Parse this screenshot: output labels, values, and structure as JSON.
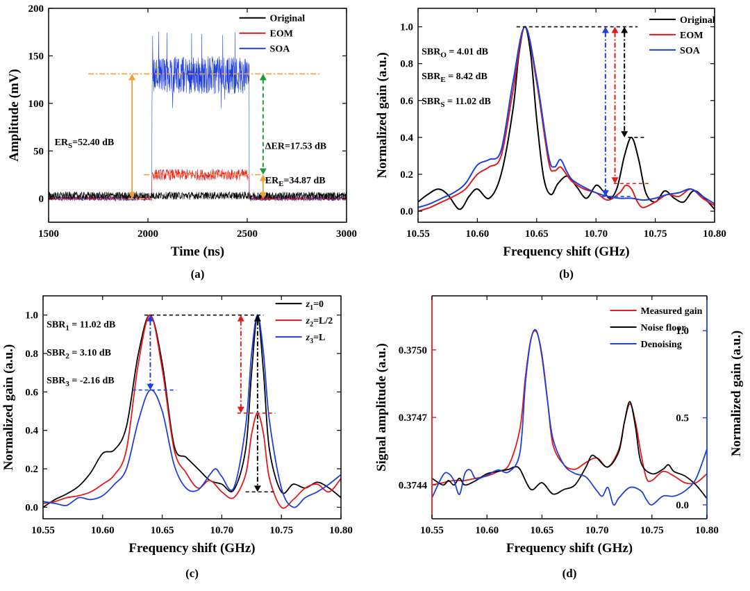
{
  "colors": {
    "original": "#000000",
    "eom": "#e31a1c",
    "soa": "#1f3fdd",
    "orange": "#f0a030",
    "green": "#1a9a3a"
  },
  "panels": {
    "a": {
      "caption": "(a)",
      "ylabel": "Amplitude (mV)",
      "xlabel": "Time (ns)"
    },
    "b": {
      "caption": "(b)",
      "ylabel": "Normalized gain (a.u.)",
      "xlabel": "Frequency shift (GHz)"
    },
    "c": {
      "caption": "(c)",
      "ylabel": "Normalized gain (a.u.)",
      "xlabel": "Frequency shift (GHz)"
    },
    "d": {
      "caption": "(d)",
      "ylabel_left": "Signal amplitude (a.u.)",
      "ylabel_right": "Normalized gain (a.u.)",
      "xlabel": "Frequency shift (GHz)"
    }
  },
  "chart_data": [
    {
      "panel": "a",
      "type": "line",
      "xlabel": "Time (ns)",
      "ylabel": "Amplitude (mV)",
      "xlim": [
        1500,
        3000
      ],
      "ylim": [
        -25,
        200
      ],
      "xticks": [
        1500,
        2000,
        2500,
        3000
      ],
      "yticks": [
        0,
        50,
        100,
        150,
        200
      ],
      "series": [
        {
          "name": "Original",
          "color": "#000000",
          "pulse_start": 2000,
          "pulse_end": 2500,
          "baseline": 3,
          "pulse_mean": 3,
          "noise": 4
        },
        {
          "name": "EOM",
          "color": "#e31a1c",
          "pulse_start": 2020,
          "pulse_end": 2510,
          "baseline": 0,
          "pulse_mean": 25,
          "noise": 6
        },
        {
          "name": "SOA",
          "color": "#1f3fdd",
          "pulse_start": 2020,
          "pulse_end": 2510,
          "baseline": 0,
          "pulse_mean": 130,
          "noise": 20,
          "peak": 178
        }
      ],
      "annotations": [
        {
          "label": "ER",
          "sub": "S",
          "text": "=52.40 dB"
        },
        {
          "label": "ΔER=17.53 dB"
        },
        {
          "label": "ER",
          "sub": "E",
          "text": "=34.87 dB"
        }
      ],
      "legend": "top-right"
    },
    {
      "panel": "b",
      "type": "line",
      "xlabel": "Frequency shift (GHz)",
      "ylabel": "Normalized gain (a.u.)",
      "xlim": [
        10.55,
        10.8
      ],
      "ylim": [
        -0.06,
        1.1
      ],
      "xticks": [
        10.55,
        10.6,
        10.65,
        10.7,
        10.75,
        10.8
      ],
      "yticks": [
        0.0,
        0.2,
        0.4,
        0.6,
        0.8,
        1.0
      ],
      "series": [
        {
          "name": "Original",
          "color": "#000000",
          "x": [
            10.55,
            10.558,
            10.567,
            10.575,
            10.585,
            10.593,
            10.6,
            10.61,
            10.62,
            10.63,
            10.635,
            10.64,
            10.645,
            10.65,
            10.656,
            10.662,
            10.668,
            10.676,
            10.684,
            10.692,
            10.7,
            10.706,
            10.712,
            10.718,
            10.724,
            10.73,
            10.736,
            10.742,
            10.75,
            10.758,
            10.766,
            10.774,
            10.782,
            10.79,
            10.8
          ],
          "y": [
            0.05,
            0.09,
            0.12,
            0.09,
            0.01,
            0.08,
            0.12,
            0.07,
            0.2,
            0.55,
            0.85,
            1.0,
            0.85,
            0.5,
            0.18,
            0.09,
            0.15,
            0.19,
            0.13,
            0.07,
            0.14,
            0.11,
            0.07,
            0.13,
            0.3,
            0.4,
            0.28,
            0.1,
            0.05,
            0.11,
            0.07,
            0.05,
            0.11,
            0.08,
            0.01
          ]
        },
        {
          "name": "EOM",
          "color": "#e31a1c",
          "x": [
            10.55,
            10.56,
            10.57,
            10.58,
            10.59,
            10.6,
            10.61,
            10.62,
            10.63,
            10.64,
            10.65,
            10.66,
            10.665,
            10.67,
            10.675,
            10.68,
            10.69,
            10.7,
            10.71,
            10.72,
            10.725,
            10.73,
            10.735,
            10.74,
            10.75,
            10.76,
            10.77,
            10.78,
            10.79,
            10.8
          ],
          "y": [
            0.0,
            0.02,
            0.05,
            0.08,
            0.12,
            0.2,
            0.24,
            0.3,
            0.65,
            1.0,
            0.7,
            0.27,
            0.22,
            0.24,
            0.2,
            0.16,
            0.12,
            0.1,
            0.06,
            0.1,
            0.14,
            0.12,
            0.05,
            0.02,
            0.05,
            0.09,
            0.08,
            0.12,
            0.07,
            0.03
          ]
        },
        {
          "name": "SOA",
          "color": "#1f3fdd",
          "x": [
            10.55,
            10.56,
            10.57,
            10.58,
            10.59,
            10.6,
            10.61,
            10.62,
            10.63,
            10.64,
            10.65,
            10.66,
            10.665,
            10.67,
            10.675,
            10.68,
            10.69,
            10.7,
            10.71,
            10.72,
            10.73,
            10.74,
            10.75,
            10.76,
            10.77,
            10.78,
            10.79,
            10.8
          ],
          "y": [
            0.02,
            0.04,
            0.07,
            0.1,
            0.15,
            0.25,
            0.28,
            0.33,
            0.7,
            1.0,
            0.72,
            0.3,
            0.24,
            0.28,
            0.22,
            0.17,
            0.13,
            0.1,
            0.08,
            0.07,
            0.07,
            0.06,
            0.07,
            0.09,
            0.1,
            0.12,
            0.08,
            0.04
          ]
        }
      ],
      "annotations": [
        {
          "label": "SBR",
          "sub": "O",
          "text": " = 4.01 dB"
        },
        {
          "label": "SBR",
          "sub": "E",
          "text": " = 8.42 dB"
        },
        {
          "label": "SBR",
          "sub": "S",
          "text": " = 11.02 dB"
        }
      ],
      "legend": "top-right"
    },
    {
      "panel": "c",
      "type": "line",
      "xlabel": "Frequency shift (GHz)",
      "ylabel": "Normalized gain (a.u.)",
      "xlim": [
        10.55,
        10.8
      ],
      "ylim": [
        -0.06,
        1.1
      ],
      "xticks": [
        10.55,
        10.6,
        10.65,
        10.7,
        10.75,
        10.8
      ],
      "yticks": [
        0.0,
        0.2,
        0.4,
        0.6,
        0.8,
        1.0
      ],
      "series": [
        {
          "name": "z1=0",
          "legend_var": "z",
          "legend_sub": "1",
          "legend_val": "=0",
          "color": "#000000",
          "x": [
            10.55,
            10.56,
            10.57,
            10.58,
            10.59,
            10.6,
            10.61,
            10.62,
            10.63,
            10.64,
            10.65,
            10.66,
            10.67,
            10.68,
            10.69,
            10.7,
            10.71,
            10.72,
            10.725,
            10.73,
            10.735,
            10.74,
            10.75,
            10.76,
            10.77,
            10.78,
            10.79,
            10.8
          ],
          "y": [
            0.0,
            0.04,
            0.07,
            0.11,
            0.18,
            0.28,
            0.3,
            0.42,
            0.8,
            1.0,
            0.75,
            0.32,
            0.26,
            0.2,
            0.14,
            0.12,
            0.09,
            0.3,
            0.7,
            1.0,
            0.7,
            0.3,
            0.08,
            0.12,
            0.1,
            0.13,
            0.1,
            0.05
          ]
        },
        {
          "name": "z2=L/2",
          "legend_var": "z",
          "legend_sub": "2",
          "legend_val": "=L/2",
          "color": "#e31a1c",
          "x": [
            10.55,
            10.56,
            10.57,
            10.58,
            10.59,
            10.6,
            10.61,
            10.62,
            10.63,
            10.64,
            10.65,
            10.66,
            10.67,
            10.68,
            10.69,
            10.7,
            10.71,
            10.72,
            10.725,
            10.73,
            10.735,
            10.74,
            10.75,
            10.76,
            10.77,
            10.78,
            10.79,
            10.8
          ],
          "y": [
            0.02,
            0.03,
            0.05,
            0.06,
            0.08,
            0.12,
            0.17,
            0.3,
            0.75,
            1.0,
            0.72,
            0.3,
            0.18,
            0.1,
            0.14,
            0.08,
            0.05,
            0.17,
            0.38,
            0.49,
            0.38,
            0.15,
            0.0,
            0.04,
            0.1,
            0.12,
            0.08,
            0.15
          ]
        },
        {
          "name": "z3=L",
          "legend_var": "z",
          "legend_sub": "3",
          "legend_val": "=L",
          "color": "#1f3fdd",
          "x": [
            10.55,
            10.56,
            10.57,
            10.58,
            10.59,
            10.6,
            10.61,
            10.62,
            10.63,
            10.64,
            10.65,
            10.66,
            10.67,
            10.68,
            10.69,
            10.695,
            10.7,
            10.71,
            10.72,
            10.725,
            10.73,
            10.735,
            10.74,
            10.75,
            10.76,
            10.77,
            10.78,
            10.79,
            10.8
          ],
          "y": [
            0.03,
            0.02,
            0.01,
            0.05,
            0.04,
            0.06,
            0.12,
            0.2,
            0.45,
            0.61,
            0.5,
            0.22,
            0.1,
            0.09,
            0.17,
            0.2,
            0.16,
            0.1,
            0.42,
            0.8,
            1.0,
            0.8,
            0.45,
            0.1,
            0.0,
            0.05,
            0.08,
            0.12,
            0.17
          ]
        }
      ],
      "annotations": [
        {
          "label": "SBR",
          "sub": "1",
          "text": " = 11.02 dB"
        },
        {
          "label": "SBR",
          "sub": "2",
          "text": " = 3.10 dB"
        },
        {
          "label": "SBR",
          "sub": "3",
          "text": " = -2.16 dB"
        }
      ],
      "legend": "top-right"
    },
    {
      "panel": "d",
      "type": "line",
      "xlabel": "Frequency shift (GHz)",
      "ylabel_left": "Signal amplitude (a.u.)",
      "ylabel_right": "Normalized gain (a.u.)",
      "xlim": [
        10.55,
        10.8
      ],
      "ylim_left": [
        0.37425,
        0.37524
      ],
      "ylim_right": [
        -0.08,
        1.2
      ],
      "xticks": [
        10.55,
        10.6,
        10.65,
        10.7,
        10.75,
        10.8
      ],
      "yticks_left": [
        "0.3744",
        "0.3747",
        "0.3750"
      ],
      "yticks_right": [
        "0.0",
        "0.5",
        "1.0"
      ],
      "series": [
        {
          "name": "Measured gain",
          "color": "#e31a1c",
          "axis": "left",
          "x": [
            10.55,
            10.56,
            10.57,
            10.58,
            10.59,
            10.6,
            10.61,
            10.62,
            10.63,
            10.635,
            10.64,
            10.645,
            10.65,
            10.655,
            10.66,
            10.67,
            10.68,
            10.69,
            10.7,
            10.71,
            10.72,
            10.725,
            10.73,
            10.735,
            10.74,
            10.745,
            10.75,
            10.76,
            10.77,
            10.78,
            10.79,
            10.8
          ],
          "y": [
            0.3744,
            0.37441,
            0.37442,
            0.37442,
            0.37443,
            0.37444,
            0.37446,
            0.37449,
            0.37465,
            0.37488,
            0.37505,
            0.37508,
            0.37498,
            0.37478,
            0.37458,
            0.37449,
            0.37447,
            0.3745,
            0.37452,
            0.37448,
            0.37456,
            0.37468,
            0.37476,
            0.37468,
            0.37454,
            0.37443,
            0.37442,
            0.37446,
            0.37444,
            0.37441,
            0.37441,
            0.37445
          ]
        },
        {
          "name": "Noise floor",
          "color": "#000000",
          "axis": "left",
          "x": [
            10.55,
            10.56,
            10.565,
            10.57,
            10.575,
            10.58,
            10.59,
            10.6,
            10.61,
            10.62,
            10.625,
            10.63,
            10.64,
            10.65,
            10.66,
            10.67,
            10.68,
            10.69,
            10.695,
            10.7,
            10.71,
            10.72,
            10.725,
            10.73,
            10.735,
            10.74,
            10.75,
            10.76,
            10.765,
            10.77,
            10.78,
            10.79,
            10.8
          ],
          "y": [
            0.37443,
            0.3744,
            0.37442,
            0.3744,
            0.37443,
            0.3744,
            0.37442,
            0.37445,
            0.37446,
            0.37447,
            0.37448,
            0.37447,
            0.37438,
            0.37441,
            0.37436,
            0.37438,
            0.3744,
            0.37448,
            0.37453,
            0.37452,
            0.37448,
            0.37455,
            0.37468,
            0.37477,
            0.37466,
            0.3745,
            0.37445,
            0.37447,
            0.37449,
            0.37446,
            0.37444,
            0.3744,
            0.37434
          ]
        },
        {
          "name": "Denoising",
          "color": "#1f3fdd",
          "axis": "right",
          "x": [
            10.55,
            10.56,
            10.565,
            10.57,
            10.575,
            10.58,
            10.585,
            10.59,
            10.6,
            10.61,
            10.62,
            10.63,
            10.635,
            10.64,
            10.645,
            10.65,
            10.655,
            10.66,
            10.67,
            10.68,
            10.69,
            10.7,
            10.705,
            10.71,
            10.715,
            10.72,
            10.73,
            10.74,
            10.745,
            10.75,
            10.76,
            10.77,
            10.78,
            10.79,
            10.8
          ],
          "y": [
            0.04,
            0.17,
            0.18,
            0.14,
            0.06,
            0.18,
            0.2,
            0.15,
            0.17,
            0.2,
            0.19,
            0.3,
            0.7,
            0.95,
            1.0,
            0.85,
            0.6,
            0.38,
            0.23,
            0.18,
            0.16,
            0.08,
            0.05,
            0.1,
            0.0,
            0.04,
            0.1,
            0.08,
            0.03,
            0.0,
            0.05,
            0.05,
            0.08,
            0.15,
            0.32
          ]
        }
      ],
      "legend": "top-right"
    }
  ]
}
